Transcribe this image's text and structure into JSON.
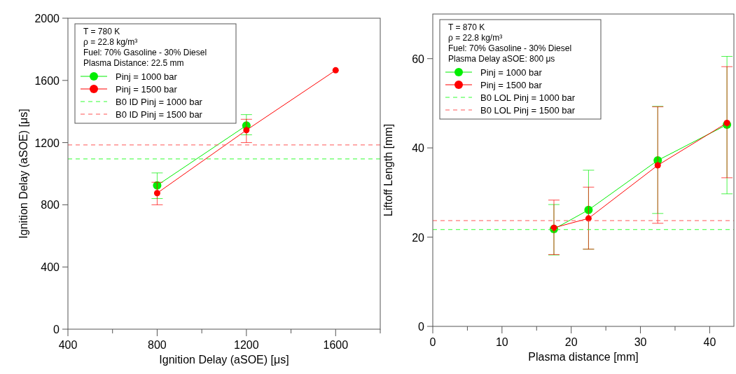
{
  "chart_data": [
    {
      "type": "line",
      "xlabel": "Ignition Delay (aSOE) [μs]",
      "ylabel": "Ignition Delay (aSOE) [μs]",
      "xlim": [
        400,
        1800
      ],
      "xticks": [
        400,
        {
          "value": 600,
          "label": null
        },
        800,
        {
          "value": 1000,
          "label": null
        },
        1200,
        {
          "value": 1400,
          "label": null
        },
        1600,
        {
          "value": 1800,
          "label": null
        }
      ],
      "ylim": [
        0,
        2000
      ],
      "yticks": [
        0,
        400,
        800,
        1200,
        1600,
        2000
      ],
      "marker": "circle",
      "legend": "top left",
      "grid": false,
      "annotations": [
        "T = 780 K",
        "ρ = 22.8 kg/m³",
        "Fuel: 70% Gasoline - 30% Diesel",
        "Plasma Distance: 22.5 mm"
      ],
      "series": [
        {
          "name": "Pinj = 1000 bar",
          "color": "#00ee00",
          "x": [
            800,
            1200
          ],
          "values": [
            925,
            1310
          ],
          "errors": [
            [
              840,
              1005
            ],
            [
              1250,
              1380
            ]
          ]
        },
        {
          "name": "Pinj = 1500 bar",
          "color": "#ff0000",
          "x": [
            800,
            1200,
            1600
          ],
          "values": [
            875,
            1280,
            1665
          ],
          "errors": [
            [
              800,
              945
            ],
            [
              1200,
              1350
            ],
            null
          ]
        },
        {
          "name": "B0 ID Pinj = 1000 bar",
          "color": "#33ff33",
          "line_style": "dashed",
          "marker": "none",
          "x": [
            400,
            1800
          ],
          "values": [
            1095,
            1095
          ]
        },
        {
          "name": "B0 ID Pinj = 1500 bar",
          "color": "#ff5555",
          "line_style": "dashed",
          "marker": "none",
          "x": [
            400,
            1800
          ],
          "values": [
            1185,
            1185
          ]
        }
      ]
    },
    {
      "type": "line",
      "xlabel": "Plasma distance [mm]",
      "ylabel": "Liftoff Length [mm]",
      "xlim": [
        0,
        43.5
      ],
      "xticks": [
        0,
        {
          "value": 5,
          "label": null
        },
        10,
        {
          "value": 15,
          "label": null
        },
        20,
        {
          "value": 25,
          "label": null
        },
        30,
        {
          "value": 35,
          "label": null
        },
        40
      ],
      "ylim": [
        0,
        70
      ],
      "yticks": [
        0,
        20,
        40,
        60
      ],
      "marker": "circle",
      "legend": "top left",
      "grid": false,
      "annotations": [
        "T = 870 K",
        "ρ = 22.8 kg/m³",
        "Fuel: 70% Gasoline - 30% Diesel",
        "Plasma Delay aSOE: 800 μs"
      ],
      "series": [
        {
          "name": "Pinj = 1000 bar",
          "color": "#00ee00",
          "x": [
            17.5,
            22.5,
            32.5,
            42.5
          ],
          "values": [
            21.8,
            26.1,
            37.2,
            45.2
          ],
          "errors": [
            [
              16,
              27.3
            ],
            [
              17.3,
              35
            ],
            [
              25.3,
              49.3
            ],
            [
              29.7,
              60.5
            ]
          ]
        },
        {
          "name": "Pinj = 1500 bar",
          "color": "#ff0000",
          "x": [
            17.5,
            22.5,
            32.5,
            42.5
          ],
          "values": [
            22.1,
            24.2,
            36.1,
            45.6
          ],
          "errors": [
            [
              16.1,
              28.3
            ],
            [
              17.3,
              31.2
            ],
            [
              23.1,
              49.2
            ],
            [
              33.3,
              58.2
            ]
          ]
        },
        {
          "name": "B0 LOL Pinj = 1000 bar",
          "color": "#33ff33",
          "line_style": "dashed",
          "marker": "none",
          "x": [
            0,
            43.5
          ],
          "values": [
            21.7,
            21.7
          ]
        },
        {
          "name": "B0 LOL Pinj = 1500 bar",
          "color": "#ff5555",
          "line_style": "dashed",
          "marker": "none",
          "x": [
            0,
            43.5
          ],
          "values": [
            23.7,
            23.7
          ]
        }
      ]
    }
  ]
}
